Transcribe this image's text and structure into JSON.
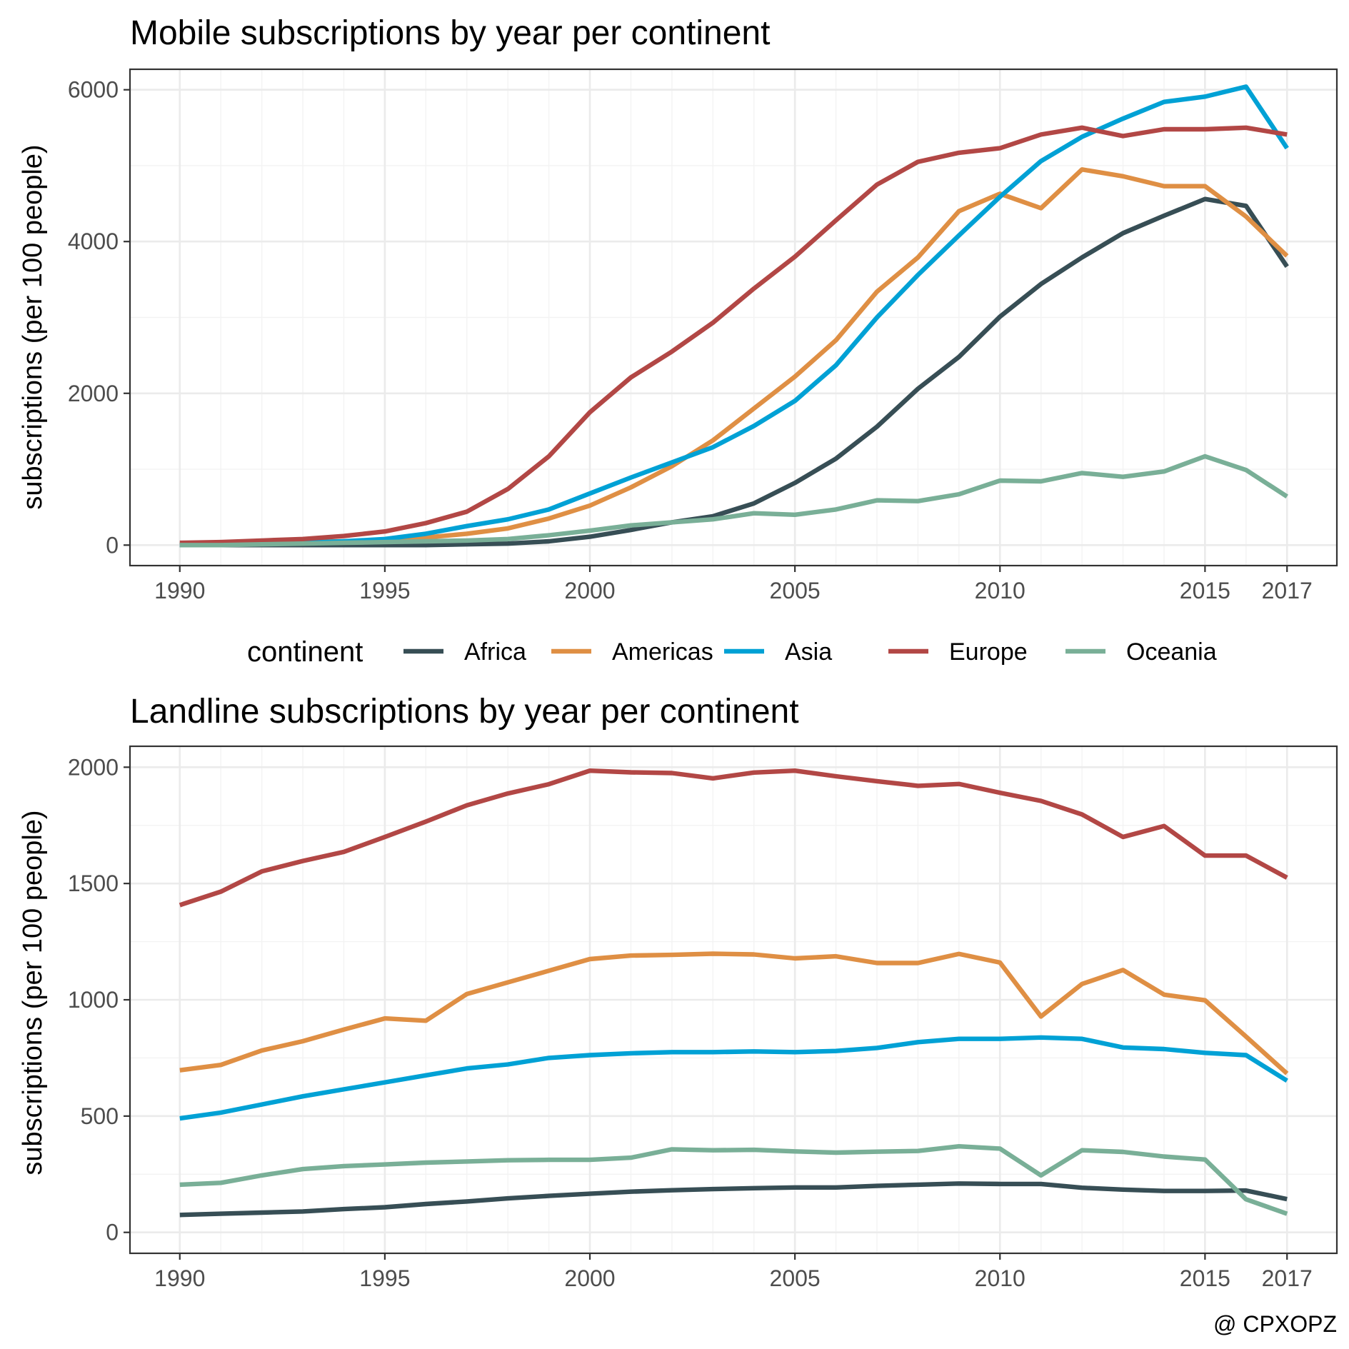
{
  "chart_data": [
    {
      "type": "line",
      "title": "Mobile subscriptions by year per continent",
      "xlabel": "",
      "ylabel": "subscriptions (per 100 people)",
      "xlim": [
        1990,
        2017
      ],
      "ylim": [
        0,
        6000
      ],
      "x_ticks": [
        1990,
        1995,
        2000,
        2005,
        2010,
        2015,
        2017
      ],
      "y_ticks": [
        0,
        2000,
        4000,
        6000
      ],
      "grid": true,
      "x": [
        1990,
        1991,
        1992,
        1993,
        1994,
        1995,
        1996,
        1997,
        1998,
        1999,
        2000,
        2001,
        2002,
        2003,
        2004,
        2005,
        2006,
        2007,
        2008,
        2009,
        2010,
        2011,
        2012,
        2013,
        2014,
        2015,
        2016,
        2017
      ],
      "series": [
        {
          "name": "Africa",
          "color": "#374E55",
          "values": [
            0,
            0,
            0,
            0,
            0,
            0,
            0,
            10,
            20,
            50,
            110,
            200,
            300,
            380,
            550,
            820,
            1140,
            1560,
            2060,
            2480,
            3010,
            3440,
            3790,
            4110,
            4340,
            4560,
            4470,
            3670
          ]
        },
        {
          "name": "Americas",
          "color": "#DF8F44",
          "values": [
            10,
            20,
            30,
            40,
            50,
            60,
            100,
            150,
            220,
            350,
            520,
            760,
            1040,
            1380,
            1800,
            2220,
            2700,
            3340,
            3790,
            4400,
            4630,
            4440,
            4950,
            4860,
            4730,
            4730,
            4330,
            3810
          ]
        },
        {
          "name": "Asia",
          "color": "#00A1D5",
          "values": [
            0,
            10,
            20,
            30,
            50,
            80,
            150,
            250,
            340,
            470,
            680,
            890,
            1090,
            1290,
            1570,
            1900,
            2370,
            3000,
            3560,
            4080,
            4590,
            5060,
            5380,
            5620,
            5840,
            5910,
            6040,
            5230
          ]
        },
        {
          "name": "Europe",
          "color": "#B24745",
          "values": [
            30,
            40,
            60,
            80,
            120,
            180,
            290,
            440,
            740,
            1170,
            1750,
            2210,
            2550,
            2930,
            3380,
            3800,
            4280,
            4750,
            5050,
            5170,
            5230,
            5410,
            5500,
            5390,
            5480,
            5480,
            5500,
            5410
          ]
        },
        {
          "name": "Oceania",
          "color": "#79AF97",
          "values": [
            0,
            0,
            10,
            20,
            30,
            40,
            50,
            60,
            80,
            130,
            190,
            260,
            300,
            340,
            420,
            400,
            470,
            590,
            580,
            670,
            850,
            840,
            950,
            900,
            970,
            1170,
            990,
            640
          ]
        }
      ]
    },
    {
      "type": "line",
      "title": "Landline subscriptions by year per continent",
      "xlabel": "",
      "ylabel": "subscriptions (per 100 people)",
      "xlim": [
        1990,
        2017
      ],
      "ylim": [
        0,
        2000
      ],
      "x_ticks": [
        1990,
        1995,
        2000,
        2005,
        2010,
        2015,
        2017
      ],
      "y_ticks": [
        0,
        500,
        1000,
        1500,
        2000
      ],
      "grid": true,
      "x": [
        1990,
        1991,
        1992,
        1993,
        1994,
        1995,
        1996,
        1997,
        1998,
        1999,
        2000,
        2001,
        2002,
        2003,
        2004,
        2005,
        2006,
        2007,
        2008,
        2009,
        2010,
        2011,
        2012,
        2013,
        2014,
        2015,
        2016,
        2017
      ],
      "series": [
        {
          "name": "Africa",
          "color": "#374E55",
          "values": [
            75,
            80,
            85,
            90,
            100,
            108,
            122,
            133,
            146,
            157,
            166,
            175,
            181,
            186,
            190,
            193,
            193,
            200,
            205,
            210,
            208,
            208,
            192,
            184,
            178,
            178,
            180,
            143
          ]
        },
        {
          "name": "Americas",
          "color": "#DF8F44",
          "values": [
            697,
            720,
            782,
            822,
            872,
            920,
            910,
            1025,
            1075,
            1125,
            1175,
            1190,
            1193,
            1198,
            1195,
            1178,
            1187,
            1158,
            1158,
            1197,
            1160,
            928,
            1068,
            1128,
            1022,
            998,
            842,
            683
          ]
        },
        {
          "name": "Asia",
          "color": "#00A1D5",
          "values": [
            490,
            515,
            550,
            585,
            615,
            645,
            675,
            705,
            722,
            750,
            762,
            770,
            775,
            775,
            778,
            775,
            780,
            793,
            818,
            832,
            832,
            838,
            832,
            795,
            788,
            772,
            762,
            652
          ]
        },
        {
          "name": "Europe",
          "color": "#B24745",
          "values": [
            1407,
            1465,
            1552,
            1597,
            1636,
            1700,
            1766,
            1836,
            1887,
            1927,
            1985,
            1978,
            1975,
            1952,
            1977,
            1985,
            1961,
            1940,
            1920,
            1928,
            1890,
            1855,
            1797,
            1700,
            1747,
            1620,
            1620,
            1525
          ]
        },
        {
          "name": "Oceania",
          "color": "#79AF97",
          "values": [
            205,
            213,
            245,
            272,
            285,
            292,
            300,
            305,
            310,
            312,
            312,
            321,
            357,
            353,
            355,
            348,
            343,
            347,
            350,
            370,
            360,
            245,
            353,
            346,
            326,
            313,
            142,
            80
          ]
        }
      ]
    }
  ],
  "legend": {
    "title": "continent",
    "position": "bottom",
    "items": [
      {
        "label": "Africa",
        "color": "#374E55"
      },
      {
        "label": "Americas",
        "color": "#DF8F44"
      },
      {
        "label": "Asia",
        "color": "#00A1D5"
      },
      {
        "label": "Europe",
        "color": "#B24745"
      },
      {
        "label": "Oceania",
        "color": "#79AF97"
      }
    ]
  },
  "credit": "@ CPXOPZ"
}
